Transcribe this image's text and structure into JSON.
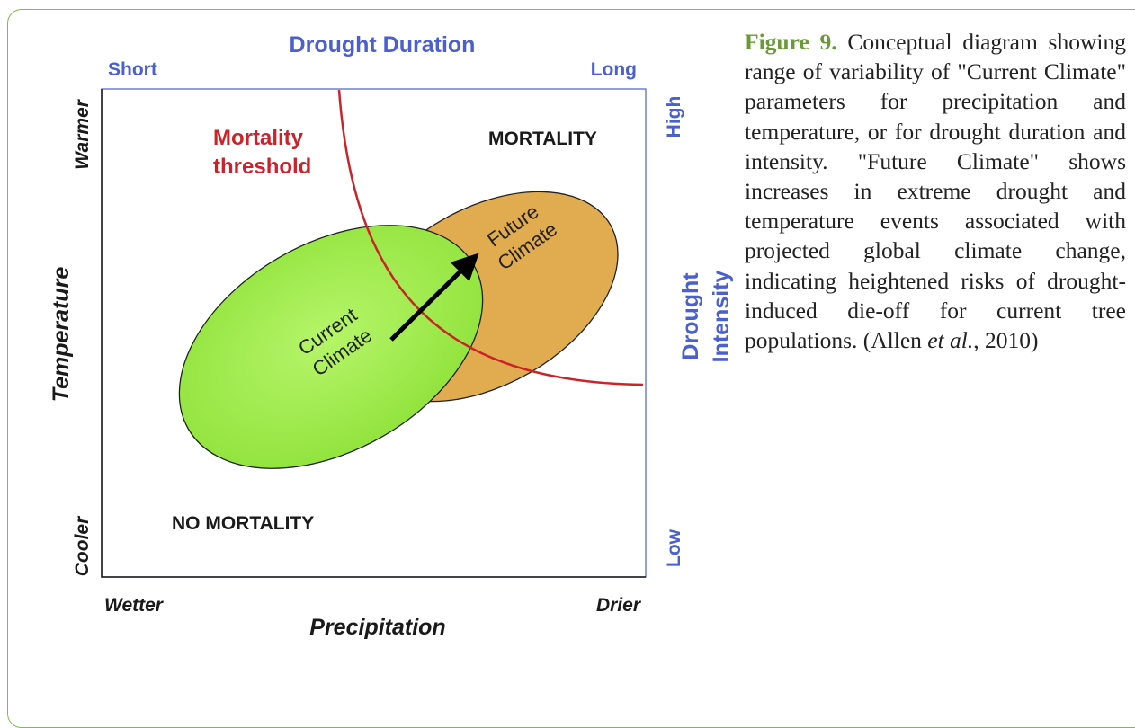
{
  "diagram": {
    "top_axis": {
      "title": "Drought Duration",
      "low": "Short",
      "high": "Long"
    },
    "bottom_axis": {
      "title": "Precipitation",
      "low": "Wetter",
      "high": "Drier"
    },
    "left_axis": {
      "title": "Temperature",
      "low": "Cooler",
      "high": "Warmer"
    },
    "right_axis": {
      "title_lines": [
        "Drought",
        "Intensity"
      ],
      "low": "Low",
      "high": "High"
    },
    "threshold_label": [
      "Mortality",
      "threshold"
    ],
    "regions": {
      "mortality": "MORTALITY",
      "no_mortality": "NO MORTALITY"
    },
    "current_climate": [
      "Current",
      "Climate"
    ],
    "future_climate": [
      "Future",
      "Climate"
    ]
  },
  "caption": {
    "label": "Figure 9.",
    "text": "Conceptual diagram showing range of variability of \"Current Climate\" parameters for precipitation and temperature, or for drought duration and intensity. \"Future Climate\" shows increases in extreme drought and temperature events associated with projected global climate change, indicating heightened risks of drought-induced die-off for current tree populations.",
    "citation_before": "(Allen ",
    "citation_italic": "et al.",
    "citation_after": ", 2010)"
  }
}
